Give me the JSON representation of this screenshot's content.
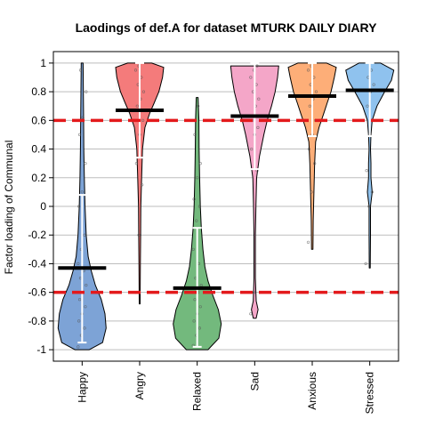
{
  "chart_data": {
    "type": "violin",
    "title": "Laodings of def.A for dataset MTURK DAILY DIARY",
    "ylabel": "Factor loading of Communal",
    "xlabel": "",
    "ylim": [
      -1.08,
      1.08
    ],
    "yticks": [
      "-1",
      "-0.8",
      "-0.6",
      "-0.4",
      "-0.2",
      "0",
      "0.2",
      "0.4",
      "0.6",
      "0.8",
      "1"
    ],
    "grid": true,
    "reference_lines": [
      0.6,
      -0.6
    ],
    "reference_line_color": "#e31a1c",
    "categories": [
      "Happy",
      "Angry",
      "Relaxed",
      "Sad",
      "Anxious",
      "Stressed"
    ],
    "series": [
      {
        "category": "Happy",
        "color": "#7da3d6",
        "mean": -0.43,
        "whisker": [
          -0.95,
          0.08
        ],
        "profile": [
          [
            -1.0,
            0.3
          ],
          [
            -0.95,
            0.85
          ],
          [
            -0.85,
            1.0
          ],
          [
            -0.75,
            0.95
          ],
          [
            -0.65,
            0.8
          ],
          [
            -0.55,
            0.55
          ],
          [
            -0.45,
            0.38
          ],
          [
            -0.35,
            0.25
          ],
          [
            -0.2,
            0.17
          ],
          [
            0.0,
            0.12
          ],
          [
            0.2,
            0.09
          ],
          [
            0.4,
            0.07
          ],
          [
            0.6,
            0.06
          ],
          [
            0.8,
            0.05
          ],
          [
            1.0,
            0.04
          ]
        ],
        "points": [
          -0.98,
          -0.9,
          -0.85,
          -0.8,
          -0.75,
          -0.7,
          -0.65,
          -0.6,
          -0.55,
          -0.5,
          -0.45,
          -0.4,
          -0.3,
          -0.2,
          0.0,
          0.1,
          0.3,
          0.5,
          0.62,
          0.8,
          0.95
        ]
      },
      {
        "category": "Angry",
        "color": "#f47b7b",
        "mean": 0.67,
        "whisker": [
          0.34,
          1.0
        ],
        "profile": [
          [
            -0.68,
            0.02
          ],
          [
            -0.4,
            0.03
          ],
          [
            -0.2,
            0.04
          ],
          [
            0.0,
            0.05
          ],
          [
            0.2,
            0.08
          ],
          [
            0.4,
            0.12
          ],
          [
            0.55,
            0.22
          ],
          [
            0.65,
            0.42
          ],
          [
            0.72,
            0.6
          ],
          [
            0.8,
            0.8
          ],
          [
            0.9,
            0.95
          ],
          [
            0.97,
            1.0
          ],
          [
            1.0,
            0.5
          ]
        ],
        "points": [
          -0.6,
          -0.2,
          0.15,
          0.3,
          0.5,
          0.6,
          0.7,
          0.75,
          0.8,
          0.85,
          0.9,
          0.95,
          0.98
        ]
      },
      {
        "category": "Relaxed",
        "color": "#73b97d",
        "mean": -0.57,
        "whisker": [
          -0.98,
          -0.15
        ],
        "profile": [
          [
            -1.0,
            0.45
          ],
          [
            -0.92,
            0.9
          ],
          [
            -0.82,
            1.0
          ],
          [
            -0.72,
            0.88
          ],
          [
            -0.62,
            0.65
          ],
          [
            -0.52,
            0.45
          ],
          [
            -0.42,
            0.32
          ],
          [
            -0.3,
            0.24
          ],
          [
            -0.15,
            0.17
          ],
          [
            0.0,
            0.13
          ],
          [
            0.2,
            0.1
          ],
          [
            0.4,
            0.08
          ],
          [
            0.6,
            0.07
          ],
          [
            0.76,
            0.04
          ]
        ],
        "points": [
          -0.97,
          -0.9,
          -0.85,
          -0.8,
          -0.75,
          -0.7,
          -0.65,
          -0.6,
          -0.55,
          -0.5,
          -0.4,
          -0.3,
          -0.1,
          0.0,
          0.05,
          0.2,
          0.3,
          0.5,
          0.7
        ]
      },
      {
        "category": "Sad",
        "color": "#f4a6c8",
        "mean": 0.63,
        "whisker": [
          0.26,
          1.0
        ],
        "profile": [
          [
            -0.78,
            0.06
          ],
          [
            -0.72,
            0.14
          ],
          [
            -0.66,
            0.06
          ],
          [
            -0.5,
            0.03
          ],
          [
            -0.2,
            0.03
          ],
          [
            0.0,
            0.05
          ],
          [
            0.2,
            0.08
          ],
          [
            0.35,
            0.2
          ],
          [
            0.5,
            0.38
          ],
          [
            0.6,
            0.52
          ],
          [
            0.7,
            0.7
          ],
          [
            0.8,
            0.85
          ],
          [
            0.9,
            0.95
          ],
          [
            0.98,
            1.0
          ]
        ],
        "points": [
          -0.75,
          -0.6,
          0.25,
          0.4,
          0.5,
          0.55,
          0.6,
          0.7,
          0.75,
          0.8,
          0.85,
          0.9,
          0.95,
          0.98
        ]
      },
      {
        "category": "Anxious",
        "color": "#fdae78",
        "mean": 0.77,
        "whisker": [
          0.49,
          1.0
        ],
        "profile": [
          [
            -0.3,
            0.03
          ],
          [
            -0.1,
            0.04
          ],
          [
            0.1,
            0.07
          ],
          [
            0.3,
            0.1
          ],
          [
            0.45,
            0.14
          ],
          [
            0.55,
            0.28
          ],
          [
            0.65,
            0.48
          ],
          [
            0.72,
            0.62
          ],
          [
            0.8,
            0.78
          ],
          [
            0.9,
            0.92
          ],
          [
            0.97,
            1.0
          ],
          [
            1.0,
            0.6
          ]
        ],
        "points": [
          -0.25,
          0.1,
          0.3,
          0.4,
          0.5,
          0.6,
          0.7,
          0.75,
          0.8,
          0.85,
          0.9,
          0.95,
          0.98
        ]
      },
      {
        "category": "Stressed",
        "color": "#8fc2ee",
        "mean": 0.81,
        "whisker": [
          0.49,
          1.0
        ],
        "profile": [
          [
            -0.43,
            0.02
          ],
          [
            -0.2,
            0.03
          ],
          [
            0.0,
            0.03
          ],
          [
            0.1,
            0.1
          ],
          [
            0.2,
            0.05
          ],
          [
            0.3,
            0.05
          ],
          [
            0.4,
            0.03
          ],
          [
            0.5,
            0.05
          ],
          [
            0.6,
            0.1
          ],
          [
            0.7,
            0.3
          ],
          [
            0.8,
            0.62
          ],
          [
            0.88,
            0.9
          ],
          [
            0.95,
            1.0
          ],
          [
            1.0,
            0.45
          ]
        ],
        "points": [
          -0.4,
          0.0,
          0.1,
          0.25,
          0.5,
          0.6,
          0.7,
          0.8,
          0.85,
          0.9,
          0.95
        ]
      }
    ]
  }
}
